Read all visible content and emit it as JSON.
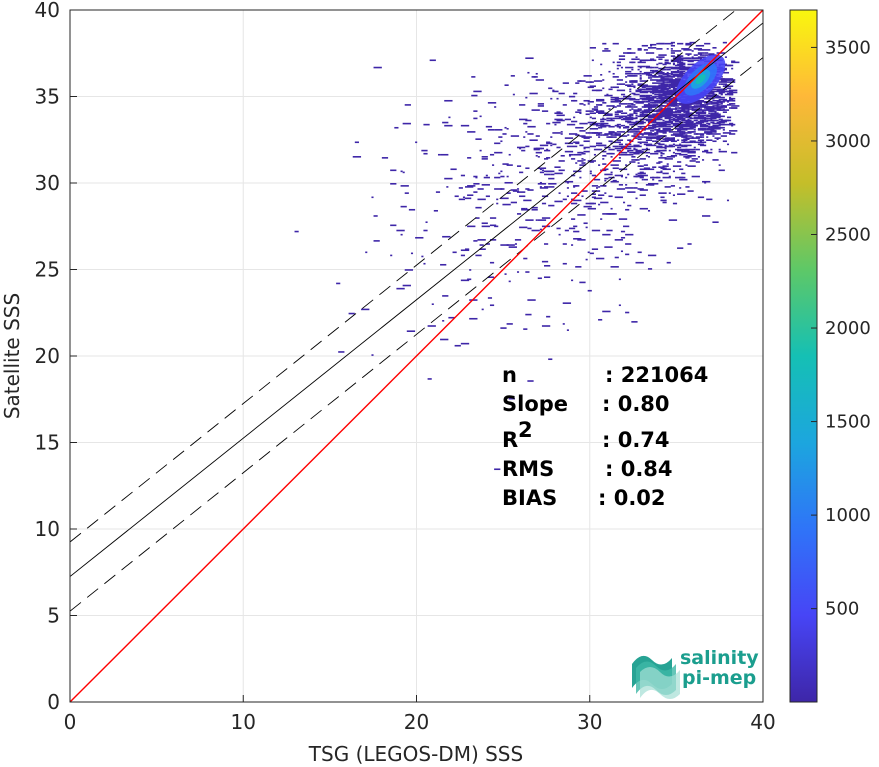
{
  "chart_data": {
    "type": "heatmap",
    "title": "",
    "xlabel": "TSG (LEGOS-DM) SSS",
    "ylabel": "Satellite SSS",
    "xlim": [
      0,
      40
    ],
    "ylim": [
      0,
      40
    ],
    "xticks": [
      "0",
      "10",
      "20",
      "30",
      "40"
    ],
    "yticks": [
      "0",
      "5",
      "10",
      "15",
      "20",
      "25",
      "30",
      "35",
      "40"
    ],
    "grid": true,
    "lines": {
      "identity": {
        "slope": 1.0,
        "intercept": 0.0,
        "color": "#ff0000"
      },
      "regression": {
        "slope": 0.8,
        "intercept": 7.25,
        "color": "#000000"
      },
      "upper_band": {
        "slope": 0.8,
        "intercept": 9.25,
        "color": "#000000",
        "style": "dashed"
      },
      "lower_band": {
        "slope": 0.8,
        "intercept": 5.25,
        "color": "#000000",
        "style": "dashed"
      }
    },
    "density_clusters": [
      {
        "x": 35.5,
        "y": 35.0,
        "sx": 1.5,
        "sy": 1.4,
        "weight": 0.55
      },
      {
        "x": 33.0,
        "y": 33.5,
        "sx": 2.3,
        "sy": 2.0,
        "weight": 0.25
      },
      {
        "x": 29.0,
        "y": 31.0,
        "sx": 4.5,
        "sy": 2.8,
        "weight": 0.15
      },
      {
        "x": 24.0,
        "y": 26.0,
        "sx": 4.0,
        "sy": 3.5,
        "weight": 0.05
      }
    ],
    "density_peak": {
      "x": 37.0,
      "y": 36.5,
      "count": 3700
    },
    "colorbar": {
      "min": 1,
      "max": 3700,
      "ticks": [
        "500",
        "1000",
        "1500",
        "2000",
        "2500",
        "3000",
        "3500"
      ],
      "colormap": "parula",
      "colors": [
        "#3e26a8",
        "#4745f6",
        "#2f74f8",
        "#1ca6de",
        "#15c0b4",
        "#5ec867",
        "#c5be29",
        "#feb839",
        "#f9f70e"
      ]
    },
    "statistics": [
      {
        "label": "n",
        "value": ": 221064"
      },
      {
        "label": "Slope",
        "value": ": 0.80"
      },
      {
        "label": "R",
        "sup": "2",
        "value": ": 0.74"
      },
      {
        "label": "RMS",
        "value": ": 0.84"
      },
      {
        "label": "BIAS",
        "value": ": 0.02"
      }
    ]
  },
  "logo": {
    "line1": "salinity",
    "line2": "pi-mep",
    "icon": "wave-layers-icon"
  }
}
